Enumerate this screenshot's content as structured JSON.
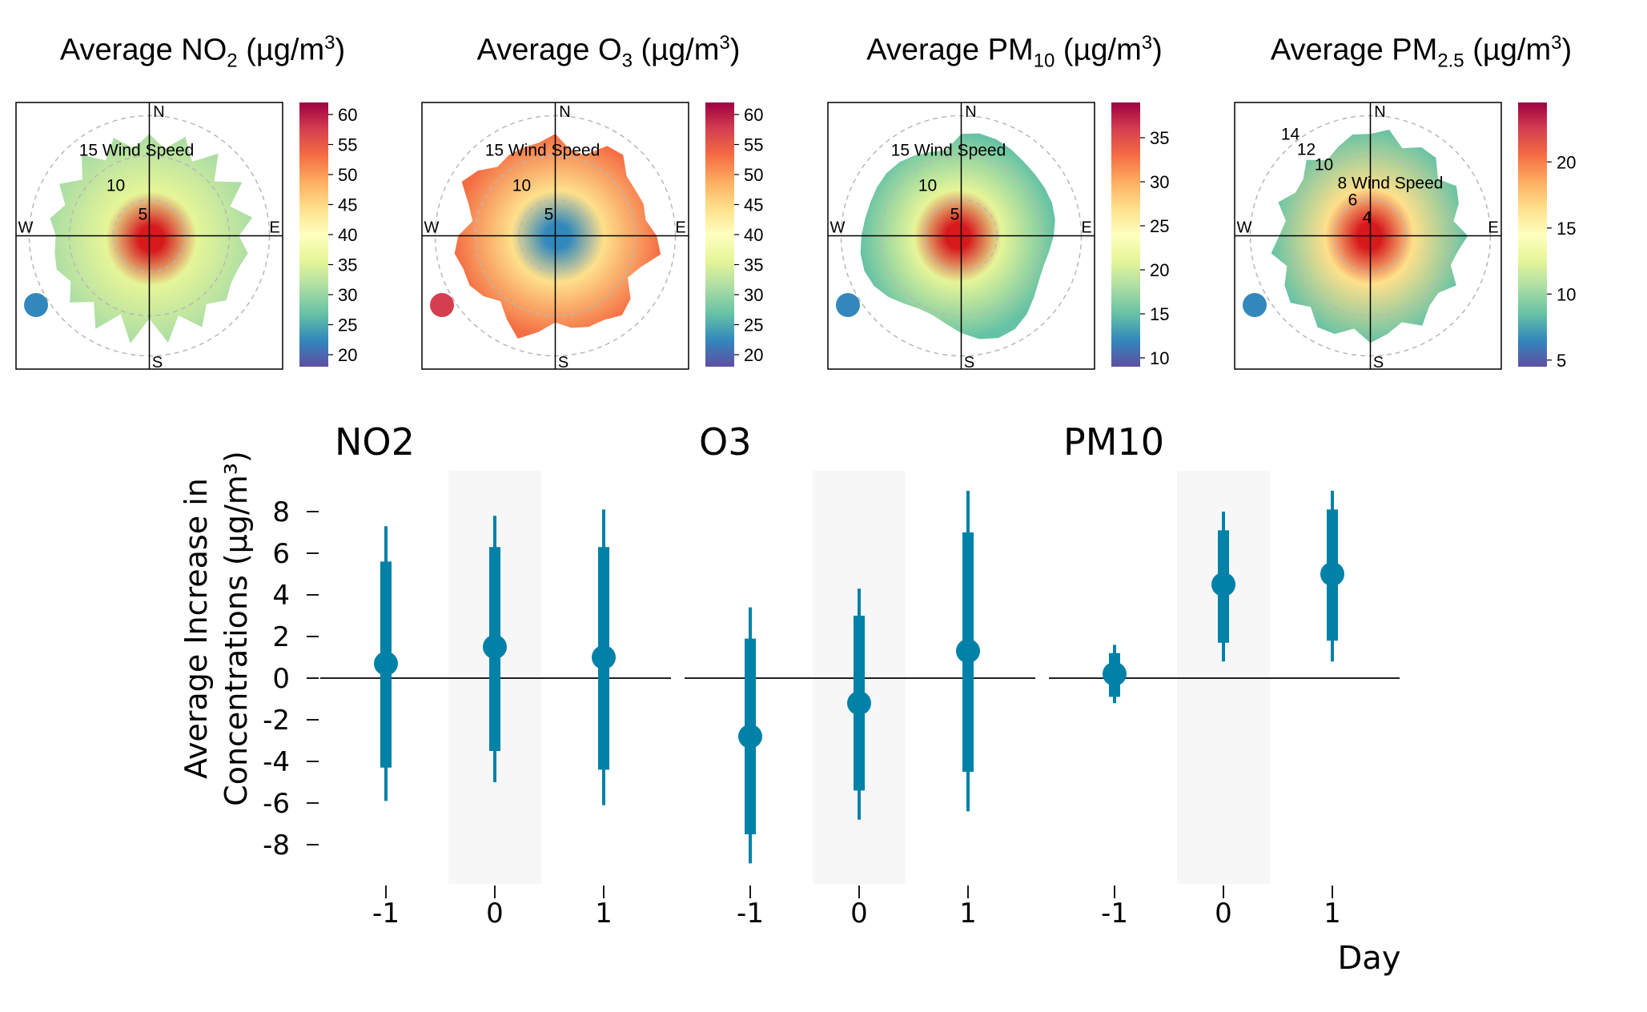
{
  "polar_plots": [
    {
      "pollutant": "NO2",
      "title_pre": "Average NO",
      "title_sub": "2",
      "title_mid": " (µg/m",
      "title_sup": "3",
      "title_post": ")",
      "compass": {
        "n": "N",
        "e": "E",
        "s": "S",
        "w": "W"
      },
      "ring_labels": [
        "15 Wind Speed",
        "10",
        "5"
      ],
      "colorbar_ticks": [
        "60",
        "55",
        "50",
        "45",
        "40",
        "35",
        "30",
        "25",
        "20"
      ],
      "colorbar_range": [
        18,
        62
      ],
      "center_color": "#d7191c",
      "mid_color": "#e6f598",
      "edge_color": "#abdda4",
      "outlier_color": "#3288bd"
    },
    {
      "pollutant": "O3",
      "title_pre": "Average O",
      "title_sub": "3",
      "title_mid": " (µg/m",
      "title_sup": "3",
      "title_post": ")",
      "compass": {
        "n": "N",
        "e": "E",
        "s": "S",
        "w": "W"
      },
      "ring_labels": [
        "15 Wind Speed",
        "10",
        "5"
      ],
      "colorbar_ticks": [
        "60",
        "55",
        "50",
        "45",
        "40",
        "35",
        "30",
        "25",
        "20"
      ],
      "colorbar_range": [
        18,
        62
      ],
      "center_color": "#3288bd",
      "mid_color": "#fee08b",
      "edge_color": "#f46d43",
      "outlier_color": "#d53e4f"
    },
    {
      "pollutant": "PM10",
      "title_pre": "Average PM",
      "title_sub": "10",
      "title_mid": " (µg/m",
      "title_sup": "3",
      "title_post": ")",
      "compass": {
        "n": "N",
        "e": "E",
        "s": "S",
        "w": "W"
      },
      "ring_labels": [
        "15 Wind Speed",
        "10",
        "5"
      ],
      "colorbar_ticks": [
        "35",
        "30",
        "25",
        "20",
        "15",
        "10"
      ],
      "colorbar_range": [
        9,
        39
      ],
      "center_color": "#d7191c",
      "mid_color": "#e6f598",
      "edge_color": "#66c2a5",
      "outlier_color": "#3288bd"
    },
    {
      "pollutant": "PM2.5",
      "title_pre": "Average PM",
      "title_sub": "2.5",
      "title_mid": " (µg/m",
      "title_sup": "3",
      "title_post": ")",
      "compass": {
        "n": "N",
        "e": "E",
        "s": "S",
        "w": "W"
      },
      "ring_labels": [
        "14",
        "12",
        "10",
        "8 Wind Speed",
        "6",
        "4"
      ],
      "colorbar_ticks": [
        "20",
        "15",
        "10",
        "5"
      ],
      "colorbar_range": [
        4.5,
        24.5
      ],
      "center_color": "#d7191c",
      "mid_color": "#fee08b",
      "edge_color": "#66c2a5",
      "outlier_color": "#3288bd"
    }
  ],
  "colorscale": [
    "#5e4fa2",
    "#3288bd",
    "#66c2a5",
    "#abdda4",
    "#e6f598",
    "#ffffbf",
    "#fee08b",
    "#fdae61",
    "#f46d43",
    "#d53e4f",
    "#9e0142"
  ],
  "chart_data": {
    "type": "scatter",
    "subtype": "coefficient plot with 95% and 99% intervals",
    "ylabel_line1": "Average Increase in",
    "ylabel_line2": "Concentrations (µg/m³)",
    "xlabel": "Day",
    "ylim": [
      -10,
      10
    ],
    "yticks": [
      8,
      6,
      4,
      2,
      0,
      -2,
      -4,
      -6,
      -8
    ],
    "categories": [
      "-1",
      "0",
      "1"
    ],
    "shaded_category": "0",
    "color": "#0081a7",
    "panels": [
      {
        "name": "NO2",
        "estimates": [
          0.7,
          1.5,
          1.0
        ],
        "inner": [
          [
            -4.3,
            5.6
          ],
          [
            -3.5,
            6.3
          ],
          [
            -4.4,
            6.3
          ]
        ],
        "outer": [
          [
            -5.9,
            7.3
          ],
          [
            -5.0,
            7.8
          ],
          [
            -6.1,
            8.1
          ]
        ]
      },
      {
        "name": "O3",
        "estimates": [
          -2.8,
          -1.2,
          1.3
        ],
        "inner": [
          [
            -7.5,
            1.9
          ],
          [
            -5.4,
            3.0
          ],
          [
            -4.5,
            7.0
          ]
        ],
        "outer": [
          [
            -8.9,
            3.4
          ],
          [
            -6.8,
            4.3
          ],
          [
            -6.4,
            9.0
          ]
        ]
      },
      {
        "name": "PM10",
        "estimates": [
          0.2,
          4.5,
          5.0
        ],
        "inner": [
          [
            -0.9,
            1.2
          ],
          [
            1.7,
            7.1
          ],
          [
            1.8,
            8.1
          ]
        ],
        "outer": [
          [
            -1.2,
            1.6
          ],
          [
            0.8,
            8.0
          ],
          [
            0.8,
            9.0
          ]
        ]
      }
    ]
  }
}
